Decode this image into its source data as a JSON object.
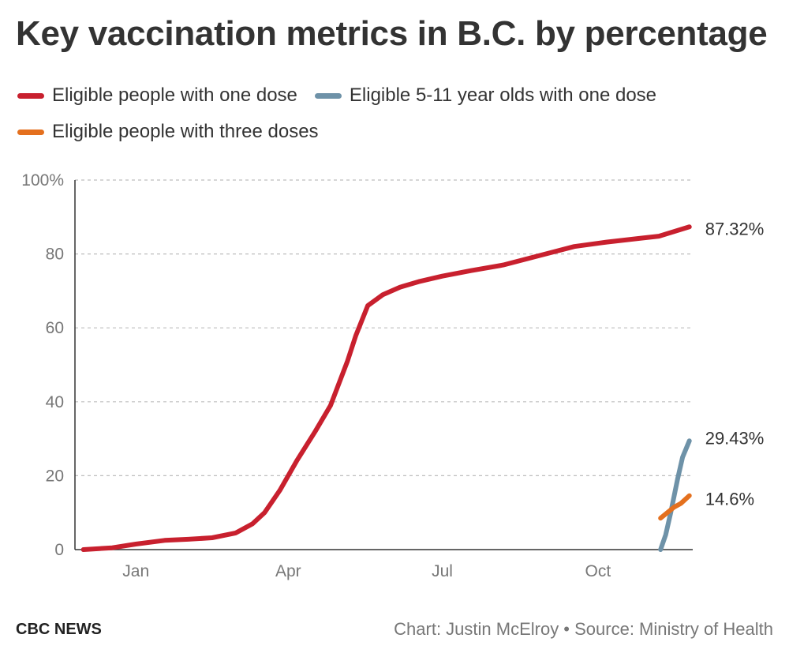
{
  "chart_data": {
    "type": "line",
    "title": "Key vaccination metrics in B.C. by percentage",
    "xlabel": "",
    "ylabel": "",
    "x_ticks": [
      "Jan",
      "Apr",
      "Jul",
      "Oct"
    ],
    "y_ticks": [
      "0",
      "20",
      "40",
      "60",
      "80",
      "100%"
    ],
    "ylim": [
      0,
      100
    ],
    "grid": true,
    "legend_position": "top-left",
    "series": [
      {
        "name": "Eligible people with one dose",
        "color": "#c8202e",
        "end_label": "87.32%",
        "x": [
          "2020-12-15",
          "2021-01-01",
          "2021-01-15",
          "2021-02-01",
          "2021-02-15",
          "2021-03-01",
          "2021-03-15",
          "2021-03-25",
          "2021-04-01",
          "2021-04-10",
          "2021-04-20",
          "2021-05-01",
          "2021-05-10",
          "2021-05-20",
          "2021-05-25",
          "2021-06-01",
          "2021-06-10",
          "2021-06-20",
          "2021-07-01",
          "2021-07-15",
          "2021-08-01",
          "2021-08-20",
          "2021-09-10",
          "2021-10-01",
          "2021-10-20",
          "2021-11-10",
          "2021-11-20",
          "2021-12-08"
        ],
        "y": [
          0,
          0.5,
          1.5,
          2.5,
          2.8,
          3.2,
          4.5,
          7,
          10,
          16,
          24,
          32,
          39,
          51,
          58,
          66,
          69,
          71,
          72.5,
          74,
          75.5,
          77,
          79.5,
          82,
          83.2,
          84.3,
          84.8,
          87.32
        ]
      },
      {
        "name": "Eligible 5-11 year olds with one dose",
        "color": "#6e92a8",
        "end_label": "29.43%",
        "x": [
          "2021-11-21",
          "2021-11-24",
          "2021-11-27",
          "2021-12-01",
          "2021-12-04",
          "2021-12-08"
        ],
        "y": [
          0,
          4,
          10,
          19,
          25,
          29.43
        ]
      },
      {
        "name": "Eligible people with three doses",
        "color": "#e4701e",
        "end_label": "14.6%",
        "x": [
          "2021-11-21",
          "2021-11-25",
          "2021-11-29",
          "2021-12-03",
          "2021-12-08"
        ],
        "y": [
          8.5,
          10,
          11.5,
          12.5,
          14.6
        ]
      }
    ]
  },
  "footer": {
    "brand": "CBC NEWS",
    "credit": "Chart: Justin McElroy • Source: Ministry of Health"
  }
}
